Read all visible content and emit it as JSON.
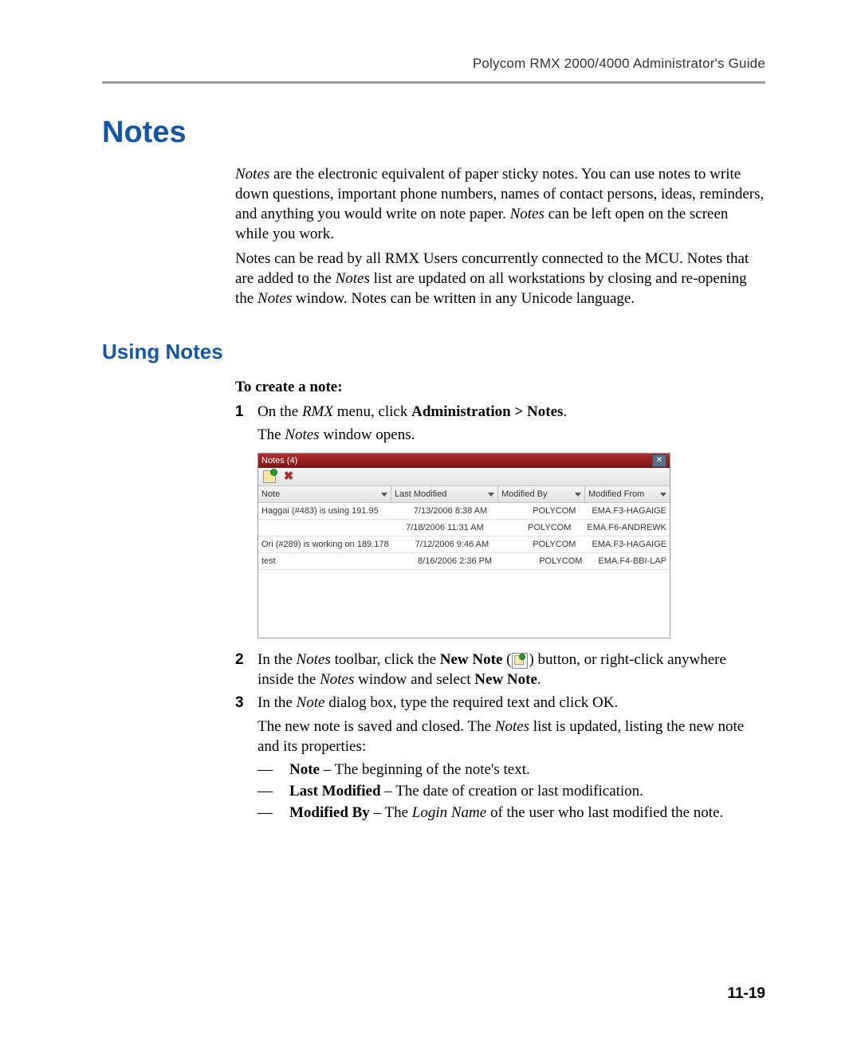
{
  "header": {
    "guide_title": "Polycom RMX 2000/4000 Administrator's Guide"
  },
  "headings": {
    "h1": "Notes",
    "h2": "Using Notes"
  },
  "intro": {
    "p1_pre": "Notes",
    "p1_rest": " are the electronic equivalent of paper sticky notes. You can use notes to write down questions, important phone numbers, names of contact persons, ideas, reminders, and anything you would write on note paper. ",
    "p1_em2": "Notes",
    "p1_tail": " can be left open on the screen while you work.",
    "p2_a": "Notes can be read by all RMX Users concurrently connected to the MCU. Notes that are added to the ",
    "p2_em": "Notes",
    "p2_b": " list are updated on all workstations by closing and re-opening the ",
    "p2_em2": "Notes",
    "p2_c": " window. Notes can be written in any Unicode language."
  },
  "to_create": "To create a note:",
  "step1": {
    "a": "On the ",
    "rmx": "RMX",
    "b": " menu, click ",
    "admin": "Administration > Notes",
    "c": ".",
    "d_a": "The ",
    "d_em": "Notes",
    "d_b": " window opens."
  },
  "step2": {
    "a": "In the ",
    "em1": "Notes",
    "b": " toolbar, click the ",
    "bold1": "New Note",
    "c": " (",
    "d": ") button, or right-click anywhere inside the ",
    "em2": "Notes",
    "e": " window and select ",
    "bold2": "New Note",
    "f": "."
  },
  "step3": {
    "a": "In the ",
    "em": "Note",
    "b": " dialog box, type the required text and click OK."
  },
  "after3": {
    "a": "The new note is saved and closed. The ",
    "em": "Notes",
    "b": " list is updated, listing the new note and its properties:"
  },
  "dashes": {
    "d1_b": "Note",
    "d1_t": " – The beginning of the note's text.",
    "d2_b": "Last Modified",
    "d2_t": " – The date of creation or last modification.",
    "d3_b": "Modified By",
    "d3_a": " – The ",
    "d3_em": "Login Name",
    "d3_c": " of the user who last modified the note."
  },
  "page_number": "11-19",
  "window": {
    "title": "Notes (4)",
    "columns": {
      "note": "Note",
      "last_modified": "Last Modified",
      "modified_by": "Modified By",
      "modified_from": "Modified From"
    },
    "rows": [
      {
        "note": "Haggai (#483) is using 191.95",
        "last": "7/13/2006 8:38 AM",
        "by": "POLYCOM",
        "from": "EMA.F3-HAGAIGE"
      },
      {
        "note": "",
        "last": "7/18/2006 11:31 AM",
        "by": "POLYCOM",
        "from": "EMA.F6-ANDREWK"
      },
      {
        "note": "Ori (#289) is working on 189.178",
        "last": "7/12/2006 9:46 AM",
        "by": "POLYCOM",
        "from": "EMA.F3-HAGAIGE"
      },
      {
        "note": "test",
        "last": "8/16/2006 2:36 PM",
        "by": "POLYCOM",
        "from": "EMA.F4-BBI-LAP"
      }
    ]
  }
}
